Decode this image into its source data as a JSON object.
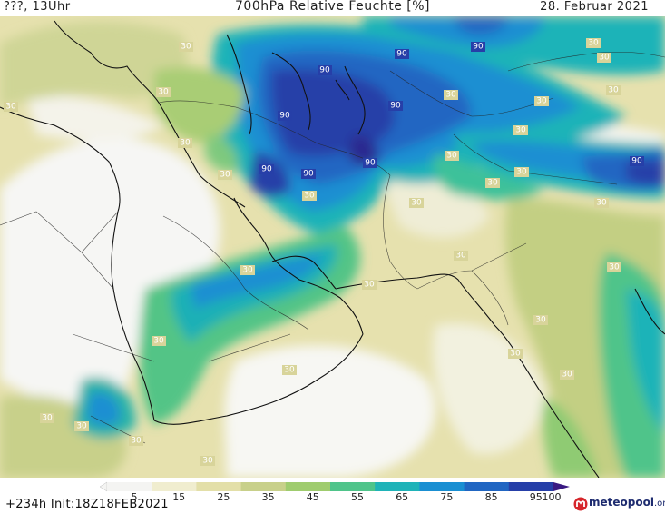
{
  "header": {
    "left": "???, 13Uhr",
    "title": "700hPa Relative Feuchte [%]",
    "date": "28. Februar 2021"
  },
  "footer": {
    "run_info": "+234h Init:18Z18FEB2021",
    "brand": "meteopool",
    "brand_suffix": ".org"
  },
  "legend": {
    "ticks": [
      "5",
      "15",
      "25",
      "35",
      "45",
      "55",
      "65",
      "75",
      "85",
      "95",
      "100"
    ],
    "colors": [
      "#f4f4f2",
      "#f0edcf",
      "#e3dfa8",
      "#c8d08a",
      "#9fcc6e",
      "#4fc48a",
      "#1fb3b8",
      "#1a8fd2",
      "#2166c2",
      "#263fa8",
      "#3a1a82"
    ]
  },
  "contour_labels": {
    "high": "90",
    "low": "30"
  }
}
